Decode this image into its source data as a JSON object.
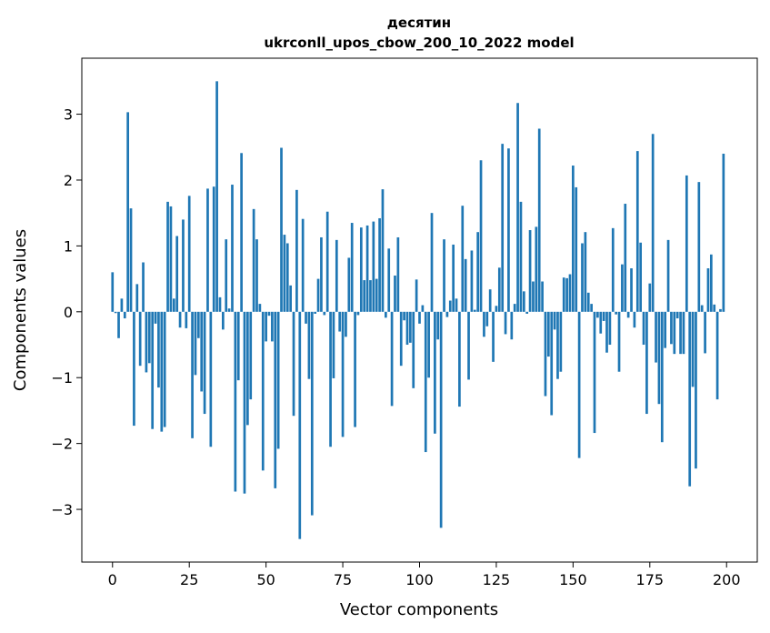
{
  "chart_data": {
    "type": "bar",
    "title": "десятин",
    "subtitle": "ukrconll_upos_cbow_200_10_2022 model",
    "xlabel": "Vector components",
    "ylabel": "Components values",
    "xlim": [
      -10,
      210
    ],
    "ylim": [
      -3.8,
      3.85
    ],
    "xticks": [
      0,
      25,
      50,
      75,
      100,
      125,
      150,
      175,
      200
    ],
    "xtick_labels": [
      "0",
      "25",
      "50",
      "75",
      "100",
      "125",
      "150",
      "175",
      "200"
    ],
    "yticks": [
      -3,
      -2,
      -1,
      0,
      1,
      2,
      3
    ],
    "ytick_labels": [
      "−3",
      "−2",
      "−1",
      "0",
      "1",
      "2",
      "3"
    ],
    "grid": false,
    "bar_color": "#1f77b4",
    "x": [
      0,
      1,
      2,
      3,
      4,
      5,
      6,
      7,
      8,
      9,
      10,
      11,
      12,
      13,
      14,
      15,
      16,
      17,
      18,
      19,
      20,
      21,
      22,
      23,
      24,
      25,
      26,
      27,
      28,
      29,
      30,
      31,
      32,
      33,
      34,
      35,
      36,
      37,
      38,
      39,
      40,
      41,
      42,
      43,
      44,
      45,
      46,
      47,
      48,
      49,
      50,
      51,
      52,
      53,
      54,
      55,
      56,
      57,
      58,
      59,
      60,
      61,
      62,
      63,
      64,
      65,
      66,
      67,
      68,
      69,
      70,
      71,
      72,
      73,
      74,
      75,
      76,
      77,
      78,
      79,
      80,
      81,
      82,
      83,
      84,
      85,
      86,
      87,
      88,
      89,
      90,
      91,
      92,
      93,
      94,
      95,
      96,
      97,
      98,
      99,
      100,
      101,
      102,
      103,
      104,
      105,
      106,
      107,
      108,
      109,
      110,
      111,
      112,
      113,
      114,
      115,
      116,
      117,
      118,
      119,
      120,
      121,
      122,
      123,
      124,
      125,
      126,
      127,
      128,
      129,
      130,
      131,
      132,
      133,
      134,
      135,
      136,
      137,
      138,
      139,
      140,
      141,
      142,
      143,
      144,
      145,
      146,
      147,
      148,
      149,
      150,
      151,
      152,
      153,
      154,
      155,
      156,
      157,
      158,
      159,
      160,
      161,
      162,
      163,
      164,
      165,
      166,
      167,
      168,
      169,
      170,
      171,
      172,
      173,
      174,
      175,
      176,
      177,
      178,
      179,
      180,
      181,
      182,
      183,
      184,
      185,
      186,
      187,
      188,
      189,
      190,
      191,
      192,
      193,
      194,
      195,
      196,
      197,
      198,
      199
    ],
    "values": [
      0.6,
      -0.02,
      -0.4,
      0.2,
      -0.1,
      3.03,
      1.57,
      -1.73,
      0.42,
      -0.82,
      0.75,
      -0.92,
      -0.78,
      -1.78,
      -0.18,
      -1.15,
      -1.82,
      -1.75,
      1.67,
      1.6,
      0.2,
      1.15,
      -0.24,
      1.4,
      -0.25,
      1.76,
      -1.92,
      -0.96,
      -0.4,
      -1.21,
      -1.55,
      1.87,
      -2.05,
      1.9,
      3.5,
      0.22,
      -0.27,
      1.1,
      0.05,
      1.93,
      -2.73,
      -1.04,
      2.41,
      -2.76,
      -1.72,
      -1.33,
      1.56,
      1.1,
      0.12,
      -2.41,
      -0.45,
      -0.06,
      -0.45,
      -2.68,
      -2.08,
      2.49,
      1.17,
      1.04,
      0.4,
      -1.58,
      1.85,
      -3.45,
      1.41,
      -0.18,
      -1.02,
      -3.09,
      -0.03,
      0.5,
      1.13,
      -0.05,
      1.52,
      -2.05,
      -1.01,
      1.09,
      -0.3,
      -1.9,
      -0.38,
      0.82,
      1.35,
      -1.75,
      -0.05,
      1.28,
      0.48,
      1.31,
      0.48,
      1.37,
      0.5,
      1.42,
      1.86,
      -0.09,
      0.96,
      -1.43,
      0.55,
      1.13,
      -0.82,
      -0.13,
      -0.5,
      -0.47,
      -1.16,
      0.49,
      -0.18,
      0.1,
      -2.13,
      -1.0,
      1.5,
      -1.85,
      -0.42,
      -3.28,
      1.1,
      -0.08,
      0.17,
      1.02,
      0.2,
      -1.44,
      1.61,
      0.8,
      -1.03,
      0.93,
      0.03,
      1.21,
      2.3,
      -0.38,
      -0.22,
      0.34,
      -0.76,
      0.09,
      0.67,
      2.55,
      -0.34,
      2.48,
      -0.42,
      0.12,
      3.17,
      1.67,
      0.31,
      -0.03,
      1.24,
      0.46,
      1.29,
      2.78,
      0.46,
      -1.28,
      -0.68,
      -1.57,
      -0.27,
      -1.02,
      -0.91,
      0.52,
      0.51,
      0.57,
      2.22,
      1.89,
      -2.22,
      1.04,
      1.21,
      0.29,
      0.12,
      -1.84,
      -0.09,
      -0.33,
      -0.14,
      -0.62,
      -0.5,
      1.27,
      -0.04,
      -0.91,
      0.72,
      1.64,
      -0.09,
      0.66,
      -0.24,
      2.44,
      1.05,
      -0.5,
      -1.55,
      0.43,
      2.7,
      -0.77,
      -1.4,
      -1.98,
      -0.55,
      1.09,
      -0.49,
      -0.64,
      -0.1,
      -0.64,
      -0.64,
      2.07,
      -2.65,
      -1.14,
      -2.38,
      1.97,
      0.1,
      -0.63,
      0.66,
      0.87,
      0.11,
      -1.33,
      0.04,
      2.4
    ]
  }
}
